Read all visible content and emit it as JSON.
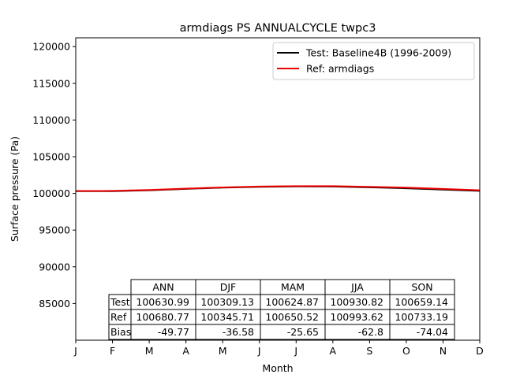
{
  "chart_data": {
    "type": "line",
    "title": "armdiags PS ANNUALCYCLE twpc3",
    "xlabel": "Month",
    "ylabel": "Surface pressure (Pa)",
    "x": [
      1,
      2,
      3,
      4,
      5,
      6,
      7,
      8,
      9,
      10,
      11,
      12
    ],
    "x_tick_labels": [
      "J",
      "F",
      "M",
      "A",
      "M",
      "J",
      "J",
      "A",
      "S",
      "O",
      "N",
      "D"
    ],
    "xlim": [
      1,
      12
    ],
    "ylim": [
      80000,
      121200
    ],
    "y_ticks": [
      85000,
      90000,
      95000,
      100000,
      105000,
      110000,
      115000,
      120000
    ],
    "grid": false,
    "legend_position": "top-right",
    "series": [
      {
        "name": "Test: Baseline4B (1996-2009)",
        "color": "#000000",
        "values": [
          100310,
          100300,
          100420,
          100620,
          100790,
          100900,
          100950,
          100930,
          100830,
          100700,
          100520,
          100350
        ]
      },
      {
        "name": "Ref: armdiags",
        "color": "#ee0000",
        "values": [
          100330,
          100340,
          100460,
          100660,
          100820,
          100930,
          100990,
          100990,
          100900,
          100790,
          100620,
          100430
        ]
      }
    ],
    "table": {
      "columns": [
        "ANN",
        "DJF",
        "MAM",
        "JJA",
        "SON"
      ],
      "rows": [
        {
          "label": "Test",
          "values": [
            "100630.99",
            "100309.13",
            "100624.87",
            "100930.82",
            "100659.14"
          ]
        },
        {
          "label": "Ref",
          "values": [
            "100680.77",
            "100345.71",
            "100650.52",
            "100993.62",
            "100733.19"
          ]
        },
        {
          "label": "Bias",
          "values": [
            "-49.77",
            "-36.58",
            "-25.65",
            "-62.8",
            "-74.04"
          ]
        }
      ]
    }
  }
}
